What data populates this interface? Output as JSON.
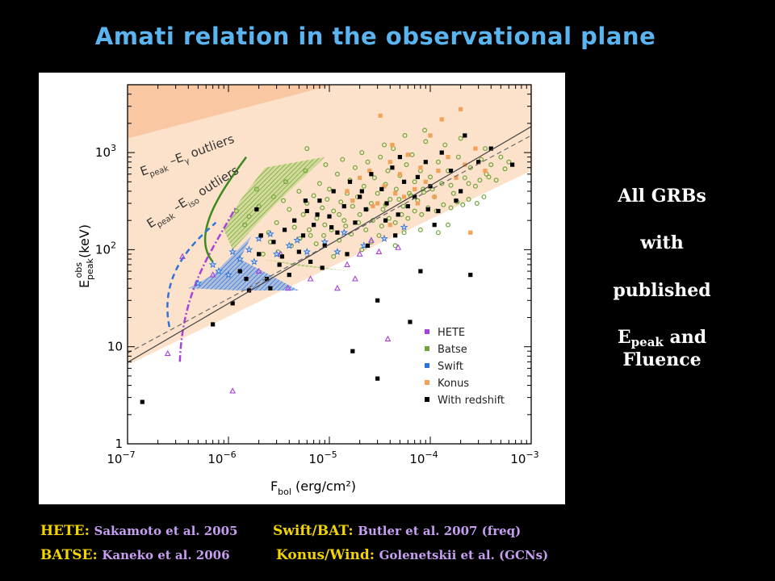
{
  "title": "Amati relation in the observational plane",
  "side_text": {
    "line1": "All  GRBs",
    "line2": "with",
    "line3": "published",
    "line4_main": "E",
    "line4_sub": "peak",
    "line4_rest": " and",
    "line5": "Fluence"
  },
  "references": [
    {
      "key": "HETE:",
      "value": "Sakamoto et al. 2005"
    },
    {
      "key": "Swift/BAT:",
      "value": "Butler et al. 2007 (freq)"
    },
    {
      "key": "BATSE:",
      "value": "Kaneko et al. 2006"
    },
    {
      "key": "Konus/Wind:",
      "value": "Golenetskii et al. (GCNs)"
    }
  ],
  "colors": {
    "hete": "#a742d8",
    "batse": "#6fa53a",
    "swift": "#2f72d9",
    "konus": "#f2a15a",
    "redshift": "#000000",
    "region": "#fbd6b4",
    "title": "#5ab4f0"
  },
  "chart_data": {
    "type": "scatter",
    "xlabel": "F",
    "xlabel_sub": "bol",
    "xlabel_unit": " (erg/cm²)",
    "ylabel": "E",
    "ylabel_sub": "peak",
    "ylabel_sup": "obs",
    "ylabel_unit": " (keV)",
    "x_scale": "log",
    "y_scale": "log",
    "xlim": [
      1e-07,
      0.001
    ],
    "ylim": [
      1,
      5000
    ],
    "x_ticks": [
      {
        "v": 1e-07,
        "base": "10",
        "exp": "−7"
      },
      {
        "v": 1e-06,
        "base": "10",
        "exp": "−6"
      },
      {
        "v": 1e-05,
        "base": "10",
        "exp": "−5"
      },
      {
        "v": 0.0001,
        "base": "10",
        "exp": "−4"
      },
      {
        "v": 0.001,
        "base": "10",
        "exp": "−3"
      }
    ],
    "y_ticks": [
      {
        "v": 1,
        "base": "1",
        "exp": ""
      },
      {
        "v": 10,
        "base": "10",
        "exp": ""
      },
      {
        "v": 100,
        "base": "10",
        "exp": "2"
      },
      {
        "v": 1000,
        "base": "10",
        "exp": "3"
      }
    ],
    "annotations": {
      "gamma_outliers": {
        "a": "E",
        "a_sub": "peak",
        "mid": " –E",
        "mid_sub": "γ",
        "rest": " outliers"
      },
      "iso_outliers": {
        "a": "E",
        "a_sub": "peak",
        "mid": " –E",
        "mid_sub": "iso",
        "rest": " outliers"
      }
    },
    "legend_position": "lower-right",
    "series": [
      {
        "name": "HETE",
        "color": "#a742d8",
        "marker": "triangle",
        "points": [
          [
            2.5e-07,
            8.5
          ],
          [
            1.1e-06,
            3.5
          ],
          [
            3.3e-06,
            90
          ],
          [
            3.9e-06,
            40
          ],
          [
            6.5e-06,
            50
          ],
          [
            1.2e-05,
            40
          ],
          [
            1.8e-05,
            50
          ],
          [
            2.6e-05,
            125
          ],
          [
            3.1e-05,
            95
          ],
          [
            3.8e-05,
            12
          ],
          [
            4.8e-05,
            105
          ],
          [
            3.5e-07,
            85
          ],
          [
            7e-07,
            55
          ],
          [
            2e-06,
            60
          ],
          [
            1.5e-05,
            70
          ],
          [
            2e-05,
            90
          ]
        ]
      },
      {
        "name": "Batse",
        "color": "#6fa53a",
        "marker": "circle",
        "points": [
          [
            1.2e-06,
            250
          ],
          [
            1.6e-06,
            220
          ],
          [
            2e-06,
            280
          ],
          [
            2.5e-06,
            150
          ],
          [
            3e-06,
            190
          ],
          [
            3.5e-06,
            320
          ],
          [
            4e-06,
            260
          ],
          [
            4.5e-06,
            170
          ],
          [
            5e-06,
            400
          ],
          [
            5.5e-06,
            230
          ],
          [
            6e-06,
            300
          ],
          [
            6.5e-06,
            140
          ],
          [
            7e-06,
            360
          ],
          [
            7.5e-06,
            210
          ],
          [
            8e-06,
            480
          ],
          [
            8.5e-06,
            270
          ],
          [
            9e-06,
            180
          ],
          [
            9.5e-06,
            330
          ],
          [
            1e-05,
            420
          ],
          [
            1.1e-05,
            250
          ],
          [
            1.2e-05,
            600
          ],
          [
            1.3e-05,
            310
          ],
          [
            1.4e-05,
            200
          ],
          [
            1.5e-05,
            380
          ],
          [
            1.6e-05,
            520
          ],
          [
            1.7e-05,
            280
          ],
          [
            1.8e-05,
            700
          ],
          [
            1.9e-05,
            350
          ],
          [
            2e-05,
            230
          ],
          [
            2.2e-05,
            450
          ],
          [
            2.4e-05,
            800
          ],
          [
            2.6e-05,
            300
          ],
          [
            2.8e-05,
            550
          ],
          [
            3e-05,
            380
          ],
          [
            3.2e-05,
            900
          ],
          [
            3.4e-05,
            260
          ],
          [
            3.6e-05,
            470
          ],
          [
            3.8e-05,
            650
          ],
          [
            4e-05,
            330
          ],
          [
            4.3e-05,
            1100
          ],
          [
            4.6e-05,
            420
          ],
          [
            5e-05,
            580
          ],
          [
            5.4e-05,
            280
          ],
          [
            5.8e-05,
            750
          ],
          [
            6.2e-05,
            380
          ],
          [
            6.6e-05,
            950
          ],
          [
            7e-05,
            500
          ],
          [
            7.5e-05,
            320
          ],
          [
            8e-05,
            650
          ],
          [
            8.5e-05,
            420
          ],
          [
            9e-05,
            1300
          ],
          [
            0.0001,
            560
          ],
          [
            0.00011,
            350
          ],
          [
            0.00012,
            800
          ],
          [
            0.00013,
            480
          ],
          [
            0.00015,
            650
          ],
          [
            0.00017,
            380
          ],
          [
            0.00019,
            900
          ],
          [
            0.00022,
            550
          ],
          [
            0.00025,
            700
          ],
          [
            0.00028,
            450
          ],
          [
            0.00032,
            850
          ],
          [
            0.00036,
            600
          ],
          [
            0.0004,
            750
          ],
          [
            0.00045,
            520
          ],
          [
            0.0005,
            900
          ],
          [
            0.00055,
            680
          ],
          [
            0.0006,
            800
          ],
          [
            2.6e-06,
            120
          ],
          [
            3.1e-06,
            95
          ],
          [
            4.2e-06,
            110
          ],
          [
            5.1e-06,
            130
          ],
          [
            6.3e-06,
            160
          ],
          [
            7.4e-06,
            115
          ],
          [
            8.8e-06,
            140
          ],
          [
            1.05e-05,
            160
          ],
          [
            1.25e-05,
            125
          ],
          [
            1.45e-05,
            175
          ],
          [
            1.65e-05,
            145
          ],
          [
            1.95e-05,
            190
          ],
          [
            2.3e-05,
            160
          ],
          [
            2.7e-05,
            200
          ],
          [
            3.3e-05,
            175
          ],
          [
            3.9e-05,
            210
          ],
          [
            4.5e-05,
            190
          ],
          [
            5.2e-05,
            230
          ],
          [
            6e-05,
            210
          ],
          [
            7e-05,
            250
          ],
          [
            8.2e-05,
            230
          ],
          [
            9.5e-05,
            270
          ],
          [
            0.000115,
            250
          ],
          [
            0.000135,
            290
          ],
          [
            0.00016,
            270
          ],
          [
            0.000185,
            310
          ],
          [
            0.00021,
            290
          ],
          [
            0.00024,
            330
          ],
          [
            0.00029,
            300
          ],
          [
            0.00034,
            350
          ],
          [
            2.8e-06,
            350
          ],
          [
            3.7e-06,
            500
          ],
          [
            5.8e-06,
            650
          ],
          [
            9.2e-06,
            750
          ],
          [
            1.35e-05,
            850
          ],
          [
            2.1e-05,
            1000
          ],
          [
            3.5e-05,
            1200
          ],
          [
            5.6e-05,
            1500
          ],
          [
            8.8e-05,
            1700
          ],
          [
            0.00014,
            1200
          ],
          [
            0.0002,
            1400
          ],
          [
            0.00035,
            1100
          ],
          [
            0.00015,
            180
          ],
          [
            0.00012,
            150
          ],
          [
            2.6e-05,
            120
          ],
          [
            4.5e-05,
            110
          ],
          [
            8e-05,
            160
          ],
          [
            6e-06,
            1100
          ],
          [
            1.9e-06,
            420
          ],
          [
            1.45e-06,
            180
          ],
          [
            2.2e-06,
            90
          ],
          [
            1.1e-05,
            85
          ],
          [
            2.1e-05,
            100
          ],
          [
            3.1e-05,
            140
          ],
          [
            5.5e-05,
            150
          ],
          [
            1.25e-05,
            230
          ],
          [
            2.35e-05,
            260
          ],
          [
            3.6e-05,
            290
          ],
          [
            4.9e-05,
            330
          ],
          [
            6.4e-05,
            360
          ],
          [
            8.6e-05,
            390
          ],
          [
            0.000105,
            420
          ],
          [
            0.00016,
            460
          ],
          [
            0.00024,
            480
          ],
          [
            0.00031,
            520
          ],
          [
            0.00038,
            560
          ]
        ]
      },
      {
        "name": "Swift",
        "color": "#2f72d9",
        "marker": "star",
        "points": [
          [
            5e-07,
            45
          ],
          [
            8e-07,
            60
          ],
          [
            1e-06,
            55
          ],
          [
            1.3e-06,
            80
          ],
          [
            1.6e-06,
            100
          ],
          [
            2e-06,
            130
          ],
          [
            3e-06,
            90
          ],
          [
            4e-06,
            110
          ],
          [
            6e-06,
            95
          ],
          [
            9e-06,
            120
          ],
          [
            1.4e-05,
            150
          ],
          [
            2.2e-05,
            110
          ],
          [
            3.5e-05,
            130
          ],
          [
            5.5e-05,
            170
          ],
          [
            7e-07,
            70
          ],
          [
            1.1e-06,
            95
          ],
          [
            1.8e-06,
            75
          ],
          [
            2.6e-06,
            145
          ],
          [
            4.8e-06,
            125
          ],
          [
            1.2e-05,
            95
          ]
        ]
      },
      {
        "name": "Konus",
        "color": "#f2a15a",
        "marker": "square",
        "points": [
          [
            1.5e-05,
            400
          ],
          [
            2e-05,
            550
          ],
          [
            2.5e-05,
            650
          ],
          [
            3e-05,
            300
          ],
          [
            3.5e-05,
            450
          ],
          [
            4e-05,
            800
          ],
          [
            4.5e-05,
            380
          ],
          [
            5e-05,
            600
          ],
          [
            6e-05,
            950
          ],
          [
            7e-05,
            420
          ],
          [
            8e-05,
            700
          ],
          [
            9e-05,
            500
          ],
          [
            0.0001,
            1500
          ],
          [
            0.00012,
            650
          ],
          [
            0.00015,
            900
          ],
          [
            0.00018,
            550
          ],
          [
            0.00022,
            750
          ],
          [
            0.00028,
            1100
          ],
          [
            0.00035,
            650
          ],
          [
            1.7e-05,
            320
          ],
          [
            2.7e-05,
            280
          ],
          [
            3.2e-05,
            2400
          ],
          [
            4.2e-05,
            1200
          ],
          [
            5.5e-05,
            350
          ],
          [
            7.5e-05,
            300
          ],
          [
            0.00011,
            350
          ],
          [
            0.00025,
            150
          ],
          [
            0.0002,
            2800
          ],
          [
            0.00013,
            2200
          ],
          [
            4e-05,
            180
          ]
        ]
      },
      {
        "name": "With redshift",
        "color": "#000000",
        "marker": "square",
        "points": [
          [
            1.4e-07,
            2.7
          ],
          [
            7e-07,
            17
          ],
          [
            1.1e-06,
            28
          ],
          [
            1.3e-06,
            60
          ],
          [
            1.6e-06,
            38
          ],
          [
            2e-06,
            90
          ],
          [
            2.4e-06,
            50
          ],
          [
            2.8e-06,
            120
          ],
          [
            3.2e-06,
            70
          ],
          [
            3.6e-06,
            160
          ],
          [
            4e-06,
            55
          ],
          [
            4.5e-06,
            200
          ],
          [
            5e-06,
            95
          ],
          [
            5.5e-06,
            140
          ],
          [
            6e-06,
            250
          ],
          [
            6.5e-06,
            75
          ],
          [
            7e-06,
            180
          ],
          [
            8e-06,
            320
          ],
          [
            9e-06,
            110
          ],
          [
            1e-05,
            220
          ],
          [
            1.1e-05,
            400
          ],
          [
            1.2e-05,
            150
          ],
          [
            1.4e-05,
            280
          ],
          [
            1.6e-05,
            500
          ],
          [
            1.8e-05,
            190
          ],
          [
            2e-05,
            350
          ],
          [
            2.3e-05,
            260
          ],
          [
            2.6e-05,
            600
          ],
          [
            3e-05,
            30
          ],
          [
            3e-05,
            4.7
          ],
          [
            3.3e-05,
            420
          ],
          [
            3.7e-05,
            300
          ],
          [
            4.2e-05,
            700
          ],
          [
            4.8e-05,
            230
          ],
          [
            5.5e-05,
            500
          ],
          [
            6.3e-05,
            18
          ],
          [
            7e-05,
            350
          ],
          [
            8e-05,
            60
          ],
          [
            9e-05,
            800
          ],
          [
            0.0001,
            450
          ],
          [
            0.00012,
            250
          ],
          [
            0.00013,
            1000
          ],
          [
            0.00016,
            650
          ],
          [
            0.0002,
            400
          ],
          [
            0.00025,
            55
          ],
          [
            0.0003,
            800
          ],
          [
            0.0004,
            1100
          ],
          [
            0.00065,
            750
          ],
          [
            2.6e-06,
            40
          ],
          [
            3.4e-06,
            85
          ],
          [
            8.5e-06,
            65
          ],
          [
            1.5e-05,
            90
          ],
          [
            2.4e-05,
            110
          ],
          [
            1.7e-05,
            9
          ],
          [
            4.5e-05,
            140
          ],
          [
            2.1e-06,
            140
          ],
          [
            5.8e-06,
            320
          ],
          [
            7.6e-06,
            230
          ],
          [
            1.05e-05,
            170
          ],
          [
            6e-05,
            280
          ],
          [
            0.00011,
            180
          ],
          [
            0.00022,
            1500
          ],
          [
            1.9e-06,
            260
          ],
          [
            1.5e-06,
            50
          ],
          [
            2.1e-05,
            400
          ],
          [
            3.6e-05,
            200
          ],
          [
            5e-05,
            900
          ],
          [
            7.5e-05,
            560
          ],
          [
            9.5e-05,
            260
          ],
          [
            0.00018,
            320
          ]
        ]
      }
    ],
    "fit_lines": [
      {
        "style": "solid",
        "from": [
          1e-07,
          6.9
        ],
        "to": [
          0.001,
          1850
        ]
      },
      {
        "style": "dashed",
        "from": [
          1e-07,
          8.6
        ],
        "to": [
          0.001,
          1500
        ]
      }
    ]
  }
}
